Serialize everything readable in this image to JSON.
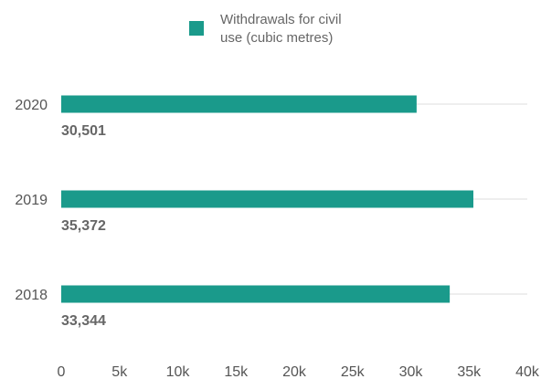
{
  "chart_data": {
    "type": "bar",
    "orientation": "horizontal",
    "categories": [
      "2020",
      "2019",
      "2018"
    ],
    "series": [
      {
        "name": "Withdrawals for civil use (cubic metres)",
        "values": [
          30501,
          35372,
          33344
        ],
        "color": "#1a9a8b"
      }
    ],
    "data_labels": [
      "30,501",
      "35,372",
      "33,344"
    ],
    "xlim": [
      0,
      40000
    ],
    "xticks": [
      0,
      5000,
      10000,
      15000,
      20000,
      25000,
      30000,
      35000,
      40000
    ],
    "xtick_labels": [
      "0",
      "5k",
      "10k",
      "15k",
      "20k",
      "25k",
      "30k",
      "35k",
      "40k"
    ],
    "legend_position": "top",
    "grid": false,
    "track_color": "#dddddd"
  }
}
